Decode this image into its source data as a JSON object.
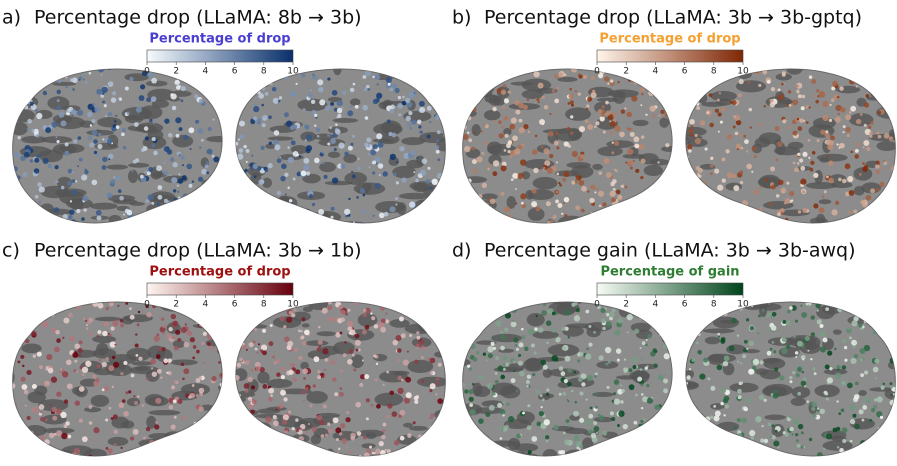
{
  "panels": [
    {
      "letter": "a)",
      "title": "Percentage drop (LLaMA: 8b → 3b)",
      "colorbar": {
        "label": "Percentage of drop",
        "label_color": "#4a3fd0",
        "color_low": "#f7fbff",
        "color_high": "#08306b",
        "lim": [
          0,
          10
        ],
        "ticks": [
          0,
          2,
          4,
          6,
          8,
          10
        ]
      }
    },
    {
      "letter": "b)",
      "title": "Percentage drop (LLaMA: 3b → 3b-gptq)",
      "colorbar": {
        "label": "Percentage of drop",
        "label_color": "#f5a030",
        "color_low": "#fff5eb",
        "color_high": "#7f2704",
        "lim": [
          0,
          10
        ],
        "ticks": [
          0,
          2,
          4,
          6,
          8,
          10
        ]
      }
    },
    {
      "letter": "c)",
      "title": "Percentage drop (LLaMA: 3b → 1b)",
      "colorbar": {
        "label": "Percentage of drop",
        "label_color": "#9e0f0f",
        "color_low": "#fff5f0",
        "color_high": "#67000d",
        "lim": [
          0,
          10
        ],
        "ticks": [
          0,
          2,
          4,
          6,
          8,
          10
        ]
      }
    },
    {
      "letter": "d)",
      "title": "Percentage gain (LLaMA: 3b → 3b-awq)",
      "colorbar": {
        "label": "Percentage of gain",
        "label_color": "#2e7d32",
        "color_low": "#f7fcf5",
        "color_high": "#00441b",
        "lim": [
          0,
          10
        ],
        "ticks": [
          0,
          2,
          4,
          6,
          8,
          10
        ]
      }
    }
  ]
}
